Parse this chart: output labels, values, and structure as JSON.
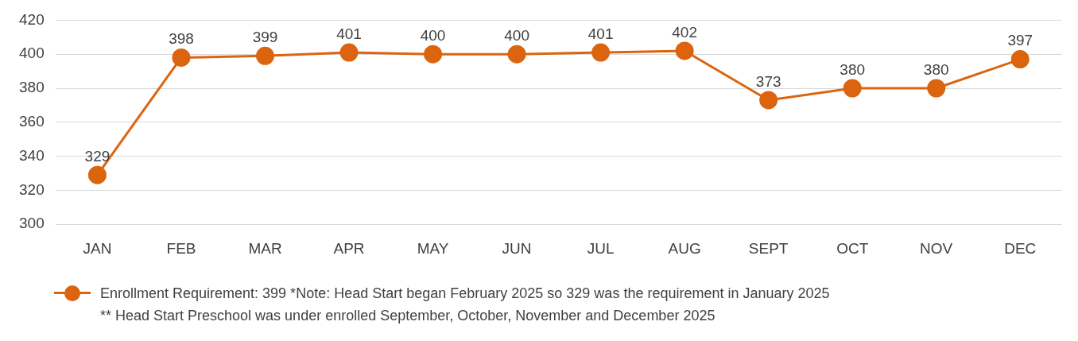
{
  "chart_data": {
    "type": "line",
    "categories": [
      "JAN",
      "FEB",
      "MAR",
      "APR",
      "MAY",
      "JUN",
      "JUL",
      "AUG",
      "SEPT",
      "OCT",
      "NOV",
      "DEC"
    ],
    "series": [
      {
        "name": "Enrollment Requirement: 399 *Note: Head Start began February 2025 so 329 was the requirement in January 2025",
        "color": "#dc640f",
        "values": [
          329,
          398,
          399,
          401,
          400,
          400,
          401,
          402,
          373,
          380,
          380,
          397
        ]
      }
    ],
    "ylim": [
      300,
      420
    ],
    "yticks": [
      300,
      320,
      340,
      360,
      380,
      400,
      420
    ],
    "grid": "y",
    "legend": "bottom",
    "marker": "circle",
    "line_style": "solid",
    "data_labels": true,
    "annotations": [
      "** Head Start Preschool was under enrolled September, October, November and December 2025"
    ]
  }
}
